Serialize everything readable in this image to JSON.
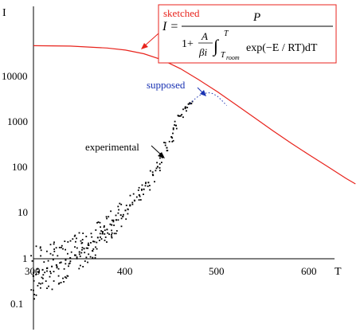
{
  "chart_data": {
    "type": "scatter",
    "title": "",
    "xlabel": "T",
    "ylabel": "I",
    "y_scale": "log",
    "xlim": [
      300,
      650
    ],
    "ylim": [
      0.05,
      100000
    ],
    "x_ticks": [
      "300",
      "400",
      "500",
      "600"
    ],
    "y_ticks": [
      "0.1",
      "1",
      "10",
      "100",
      "1000",
      "10000"
    ],
    "colors": {
      "sketched": "#e8231c",
      "supposed": "#1a33b3",
      "experimental": "#000000",
      "axes": "#000000"
    },
    "annotations": {
      "sketched_label": "sketched",
      "supposed_label": "supposed",
      "experimental_label": "experimental"
    },
    "equation": {
      "lhs": "I =",
      "numerator": "P",
      "one_plus": "1+",
      "frac_A": "A",
      "frac_beta_i": "βi",
      "integral_sign": "∫",
      "upper_limit": "T",
      "lower_limit": "T",
      "lower_limit_sub": "room",
      "integrand": "exp(−E / RT)dT"
    },
    "series": [
      {
        "name": "sketched",
        "style": "line",
        "x": [
          300,
          340,
          380,
          400,
          420,
          440,
          460,
          480,
          500,
          520,
          540,
          560,
          580,
          600,
          620,
          640,
          650
        ],
        "y": [
          45000,
          44000,
          40000,
          36000,
          30000,
          22000,
          14000,
          8000,
          4400,
          2300,
          1200,
          620,
          330,
          180,
          100,
          55,
          42
        ]
      },
      {
        "name": "supposed",
        "style": "dotted",
        "x": [
          470,
          475,
          480,
          485,
          490,
          495,
          500,
          505,
          510
        ],
        "y": [
          2400,
          3000,
          3600,
          4000,
          4200,
          4000,
          3500,
          2800,
          2200
        ]
      },
      {
        "name": "experimental",
        "style": "scatter",
        "x": [
          300,
          305,
          310,
          315,
          320,
          325,
          330,
          335,
          340,
          345,
          350,
          355,
          360,
          365,
          370,
          375,
          380,
          385,
          390,
          395,
          400,
          405,
          410,
          415,
          420,
          425,
          430,
          435,
          440,
          445,
          450,
          455,
          460,
          465,
          470
        ],
        "y": [
          0.4,
          0.5,
          0.55,
          0.6,
          0.65,
          0.7,
          0.8,
          0.9,
          1.0,
          1.15,
          1.35,
          1.6,
          1.9,
          2.3,
          2.8,
          3.4,
          4.2,
          5.3,
          6.8,
          8.7,
          11,
          14,
          18,
          24,
          32,
          45,
          65,
          100,
          160,
          260,
          450,
          800,
          1300,
          1900,
          2500
        ]
      }
    ]
  }
}
